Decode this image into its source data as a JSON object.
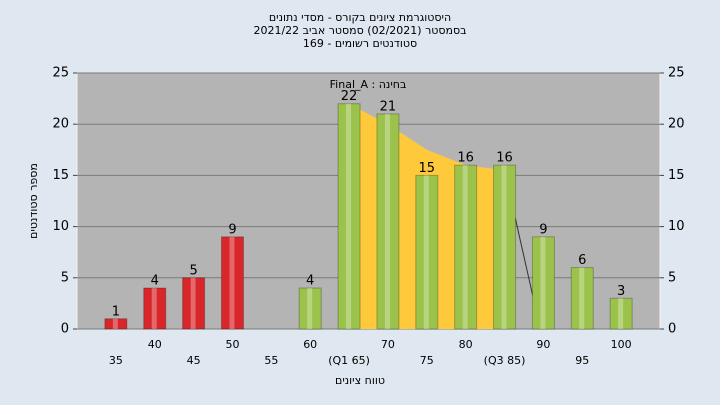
{
  "chart_data": {
    "type": "bar",
    "title": [
      "היסטוגרמת ציונים בקורס - מסדי נתונים",
      "בסמסטר  (02/2021)  סמסטר אביב 2021/22",
      "סטודנטים רשומים - 169"
    ],
    "annotation": "בחינה : Final_A",
    "x_label": "טווח ציונים",
    "y_label": "מספר סטודנטים",
    "x": [
      35,
      40,
      45,
      50,
      55,
      60,
      65,
      70,
      75,
      80,
      85,
      90,
      95,
      100
    ],
    "values": [
      1,
      4,
      5,
      9,
      null,
      4,
      22,
      21,
      15,
      16,
      16,
      9,
      6,
      3
    ],
    "colors": [
      "#d8262a",
      "#d8262a",
      "#d8262a",
      "#d8262a",
      "#d8262a",
      "#9bc24a",
      "#9bc24a",
      "#9bc24a",
      "#9bc24a",
      "#9bc24a",
      "#9bc24a",
      "#9bc24a",
      "#9bc24a",
      "#9bc24a"
    ],
    "xlim": [
      30,
      105
    ],
    "xticks": [
      35,
      40,
      45,
      50,
      55,
      60,
      {
        "value": 65,
        "label": "(Q1 65)"
      },
      70,
      75,
      80,
      {
        "value": 85,
        "label": "(Q3 85)"
      },
      90,
      95,
      100
    ],
    "ylim": [
      0,
      25
    ],
    "yticks": [
      0,
      5,
      10,
      15,
      20,
      25
    ],
    "y2lim": [
      0,
      25
    ],
    "y2ticks": [
      0,
      5,
      10,
      15,
      20,
      25
    ],
    "curve": {
      "x": [
        65,
        70,
        75,
        80,
        85,
        89
      ],
      "values": [
        22,
        20,
        17.5,
        16,
        15.5,
        2
      ],
      "color": "#ffc93c"
    },
    "grid": true
  }
}
